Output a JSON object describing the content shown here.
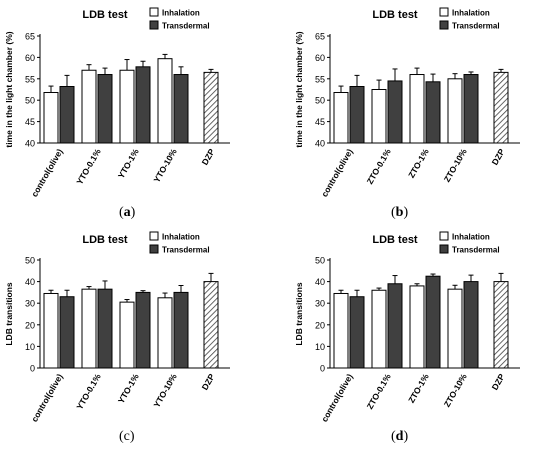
{
  "charts": [
    {
      "panel": "a",
      "chart_data": {
        "type": "bar",
        "title": "LDB test",
        "ylabel": "time in the light chamber (%)",
        "ylim": [
          40,
          65
        ],
        "yticks": [
          40,
          45,
          50,
          55,
          60,
          65
        ],
        "categories": [
          "control(olive)",
          "YTO-0.1%",
          "YTO-1%",
          "YTO-10%",
          "DZP"
        ],
        "series": [
          {
            "name": "Inhalation",
            "color": "#ffffff",
            "values": [
              51.8,
              57.0,
              57.0,
              59.7,
              null
            ],
            "errors": [
              1.5,
              1.3,
              2.5,
              1.0,
              null
            ]
          },
          {
            "name": "Transdermal",
            "color": "#404040",
            "values": [
              53.2,
              56.0,
              57.8,
              56.0,
              null
            ],
            "errors": [
              2.6,
              1.5,
              1.3,
              1.8,
              null
            ]
          }
        ],
        "reference": {
          "label": "DZP",
          "value": 56.5,
          "error": 0.7,
          "pattern": "hatched"
        },
        "legend": "top-right",
        "grid": false
      }
    },
    {
      "panel": "b",
      "chart_data": {
        "type": "bar",
        "title": "LDB test",
        "ylabel": "time in the light chamber (%)",
        "ylim": [
          40,
          65
        ],
        "yticks": [
          40,
          45,
          50,
          55,
          60,
          65
        ],
        "categories": [
          "control(olive)",
          "ZTO-0.1%",
          "ZTO-1%",
          "ZTO-10%",
          "DZP"
        ],
        "series": [
          {
            "name": "Inhalation",
            "color": "#ffffff",
            "values": [
              51.8,
              52.5,
              56.0,
              55.0,
              null
            ],
            "errors": [
              1.5,
              2.2,
              1.5,
              1.2,
              null
            ]
          },
          {
            "name": "Transdermal",
            "color": "#404040",
            "values": [
              53.2,
              54.5,
              54.3,
              56.0,
              null
            ],
            "errors": [
              2.6,
              2.8,
              1.8,
              0.6,
              null
            ]
          }
        ],
        "reference": {
          "label": "DZP",
          "value": 56.5,
          "error": 0.7,
          "pattern": "hatched"
        },
        "legend": "top-right",
        "grid": false
      }
    },
    {
      "panel": "c",
      "chart_data": {
        "type": "bar",
        "title": "LDB test",
        "ylabel": "LDB transitions",
        "ylim": [
          0,
          50
        ],
        "yticks": [
          0,
          10,
          20,
          30,
          40,
          50
        ],
        "categories": [
          "control(olive)",
          "YTO-0.1%",
          "YTO-1%",
          "YTO-10%",
          "DZP"
        ],
        "series": [
          {
            "name": "Inhalation",
            "color": "#ffffff",
            "values": [
              34.5,
              36.5,
              30.5,
              32.5,
              null
            ],
            "errors": [
              1.5,
              1.2,
              1.2,
              2.2,
              null
            ]
          },
          {
            "name": "Transdermal",
            "color": "#404040",
            "values": [
              33.0,
              36.5,
              35.0,
              35.0,
              null
            ],
            "errors": [
              3.0,
              3.8,
              0.8,
              3.2,
              null
            ]
          }
        ],
        "reference": {
          "label": "DZP",
          "value": 40.0,
          "error": 3.8,
          "pattern": "hatched"
        },
        "legend": "top-right",
        "grid": false
      }
    },
    {
      "panel": "d",
      "chart_data": {
        "type": "bar",
        "title": "LDB test",
        "ylabel": "LDB transitions",
        "ylim": [
          0,
          50
        ],
        "yticks": [
          0,
          10,
          20,
          30,
          40,
          50
        ],
        "categories": [
          "control(olive)",
          "ZTO-0.1%",
          "ZTO-1%",
          "ZTO-10%",
          "DZP"
        ],
        "series": [
          {
            "name": "Inhalation",
            "color": "#ffffff",
            "values": [
              34.5,
              36.0,
              38.0,
              36.5,
              null
            ],
            "errors": [
              1.5,
              1.0,
              1.0,
              1.8,
              null
            ]
          },
          {
            "name": "Transdermal",
            "color": "#404040",
            "values": [
              33.0,
              39.0,
              42.5,
              40.0,
              null
            ],
            "errors": [
              3.0,
              3.8,
              1.0,
              3.0,
              null
            ]
          }
        ],
        "reference": {
          "label": "DZP",
          "value": 40.0,
          "error": 3.8,
          "pattern": "hatched"
        },
        "legend": "top-right",
        "grid": false
      }
    }
  ],
  "panel_labels": {
    "a": "a",
    "b": "b",
    "c": "c",
    "d": "d"
  }
}
